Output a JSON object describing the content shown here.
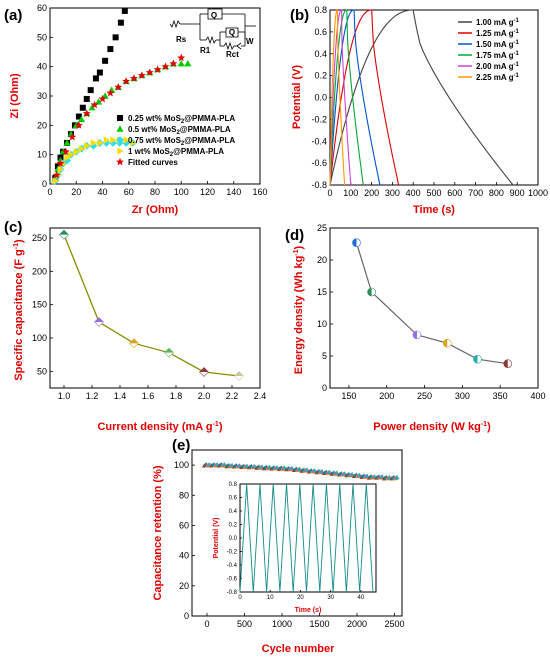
{
  "chart_data": [
    {
      "panel_label": "(a)",
      "type": "scatter",
      "xlabel": "Zr (Ohm)",
      "ylabel": "Zi (Ohm)",
      "xlim": [
        0,
        160
      ],
      "ylim": [
        0,
        60
      ],
      "xticks": [
        "0",
        "20",
        "40",
        "60",
        "80",
        "100",
        "120",
        "140",
        "160"
      ],
      "yticks": [
        "0",
        "10",
        "20",
        "30",
        "40",
        "50",
        "60"
      ],
      "circuit_labels": [
        "Q",
        "Q",
        "Rs",
        "R1",
        "Rct",
        "W"
      ],
      "series": [
        {
          "name": "0.25 wt% MoS2@PMMA-PLA",
          "color": "#000000",
          "marker": "square",
          "x": [
            4,
            6,
            8,
            10,
            13,
            16,
            19,
            22,
            25,
            28,
            31,
            35,
            38,
            42,
            46,
            50,
            54,
            57
          ],
          "y": [
            2,
            6,
            9,
            11,
            14,
            17,
            20,
            23,
            26,
            29,
            32,
            36,
            38,
            42,
            46,
            50,
            55,
            59
          ]
        },
        {
          "name": "0.5 wt% MoS2@PMMA-PLA",
          "color": "#00cc00",
          "marker": "triangle",
          "x": [
            4,
            6,
            8,
            10,
            13,
            16,
            20,
            24,
            28,
            32,
            37,
            42,
            47,
            52,
            58,
            64,
            70,
            76,
            82,
            88,
            94,
            100,
            105
          ],
          "y": [
            2,
            5,
            8,
            11,
            14,
            17,
            20,
            22,
            24,
            26,
            28,
            30,
            32,
            33,
            35,
            36,
            37,
            38,
            39,
            40,
            41,
            41,
            41
          ]
        },
        {
          "name": "0.75 wt% MoS2@PMMA-PLA",
          "color": "#33ddee",
          "marker": "diamond",
          "x": [
            4,
            6,
            8,
            10,
            13,
            16,
            20,
            24,
            28,
            33,
            38,
            43,
            48,
            53,
            58,
            63
          ],
          "y": [
            1,
            3,
            5,
            7,
            8,
            10,
            11,
            12,
            13,
            13,
            14,
            14,
            14,
            14,
            14,
            14
          ]
        },
        {
          "name": "1 wt% MoS2@PMMA-PLA",
          "color": "#ffdd00",
          "marker": "triangle-right",
          "x": [
            4,
            6,
            8,
            10,
            13,
            16,
            20,
            24,
            28,
            33,
            38,
            43,
            48,
            53,
            58,
            63
          ],
          "y": [
            1,
            3,
            5,
            7,
            9,
            10,
            11,
            12,
            13,
            14,
            14,
            15,
            15,
            15,
            15,
            14
          ]
        },
        {
          "name": "Fitted curves",
          "color": "#e00000",
          "marker": "star",
          "x": [
            5,
            8,
            12,
            17,
            22,
            28,
            34,
            40,
            46,
            52,
            58,
            64,
            70,
            76,
            82,
            88,
            94,
            100
          ],
          "y": [
            3,
            7,
            11,
            16,
            20,
            24,
            27,
            29,
            31,
            33,
            35,
            36,
            37,
            38,
            39,
            40,
            41,
            43
          ]
        }
      ]
    },
    {
      "panel_label": "(b)",
      "type": "line",
      "xlabel": "Time (s)",
      "ylabel": "Potential (V)",
      "xlim": [
        0,
        1000
      ],
      "ylim": [
        -0.8,
        0.8
      ],
      "xticks": [
        "0",
        "100",
        "200",
        "300",
        "400",
        "500",
        "600",
        "700",
        "800",
        "900",
        "1000"
      ],
      "yticks": [
        "0.8",
        "0.6",
        "0.4",
        "0.2",
        "0.0",
        "-0.2",
        "-0.4",
        "-0.6",
        "-0.8"
      ],
      "series": [
        {
          "name": "1.00 mA g-1",
          "label_main": "1.00 mA g",
          "label_sup": "-1",
          "color": "#444444",
          "charge_end": 400,
          "discharge_end": 880
        },
        {
          "name": "1.25 mA g-1",
          "label_main": "1.25 mA g",
          "label_sup": "-1",
          "color": "#e00000",
          "charge_end": 200,
          "discharge_end": 330
        },
        {
          "name": "1.50 mA g-1",
          "label_main": "1.50 mA g",
          "label_sup": "-1",
          "color": "#0055cc",
          "charge_end": 115,
          "discharge_end": 240
        },
        {
          "name": "1.75 mA g-1",
          "label_main": "1.75 mA g",
          "label_sup": "-1",
          "color": "#00aa33",
          "charge_end": 80,
          "discharge_end": 160
        },
        {
          "name": "2.00 mA g-1",
          "label_main": "2.00 mA g",
          "label_sup": "-1",
          "color": "#cc44cc",
          "charge_end": 55,
          "discharge_end": 100
        },
        {
          "name": "2.25 mA g-1",
          "label_main": "2.25 mA g",
          "label_sup": "-1",
          "color": "#ff9900",
          "charge_end": 35,
          "discharge_end": 70
        }
      ]
    },
    {
      "panel_label": "(c)",
      "type": "line",
      "xlabel": "Current density (mA g-1)",
      "xlabel_main": "Current density (mA g",
      "xlabel_sup": "-1",
      "xlabel_end": ")",
      "ylabel": "Specific capacitance (F g-1)",
      "ylabel_main": "Specific capacitance (F g",
      "ylabel_sup": "-1",
      "ylabel_end": ")",
      "xlim": [
        0.9,
        2.4
      ],
      "ylim": [
        25,
        265
      ],
      "xticks": [
        "1.0",
        "1.2",
        "1.4",
        "1.6",
        "1.8",
        "2.0",
        "2.2",
        "2.4"
      ],
      "yticks": [
        "50",
        "100",
        "150",
        "200",
        "250"
      ],
      "line_color": "#8b8b00",
      "x": [
        1.0,
        1.25,
        1.5,
        1.75,
        2.0,
        2.25
      ],
      "y": [
        255,
        124,
        92,
        78,
        49,
        43
      ],
      "marker_colors": [
        "#2e8b57",
        "#9370db",
        "#daa520",
        "#5fb65f",
        "#8b3a3a",
        "#c8c8a0"
      ]
    },
    {
      "panel_label": "(d)",
      "type": "line",
      "xlabel": "Power density (W kg-1)",
      "xlabel_main": "Power density (W kg",
      "xlabel_sup": "-1",
      "xlabel_end": ")",
      "ylabel": "Energy density (Wh kg-1)",
      "ylabel_main": "Energy density (Wh kg",
      "ylabel_sup": "-1",
      "ylabel_end": ")",
      "xlim": [
        125,
        400
      ],
      "ylim": [
        0,
        25
      ],
      "xticks": [
        "150",
        "200",
        "250",
        "300",
        "350",
        "400"
      ],
      "yticks": [
        "0",
        "5",
        "10",
        "15",
        "20",
        "25"
      ],
      "line_color": "#666666",
      "x": [
        160,
        180,
        240,
        280,
        320,
        360
      ],
      "y": [
        22.7,
        15.0,
        8.3,
        7.0,
        4.5,
        3.8
      ],
      "marker_colors": [
        "#1f6fd0",
        "#2e8b57",
        "#9370db",
        "#daa520",
        "#20b2aa",
        "#8b3a3a"
      ]
    },
    {
      "panel_label": "(e)",
      "type": "scatter",
      "xlabel": "Cycle number",
      "ylabel": "Capacitance retention (%)",
      "xlim": [
        -200,
        2600
      ],
      "ylim": [
        0,
        110
      ],
      "xticks": [
        "0",
        "500",
        "1000",
        "1500",
        "2000",
        "2500"
      ],
      "yticks": [
        "0",
        "20",
        "40",
        "60",
        "80",
        "100"
      ],
      "retention_x": [
        0,
        100,
        200,
        300,
        400,
        500,
        600,
        700,
        800,
        900,
        1000,
        1100,
        1200,
        1300,
        1400,
        1500,
        1600,
        1700,
        1800,
        1900,
        2000,
        2100,
        2200,
        2300,
        2400,
        2500
      ],
      "retention_y": [
        100,
        100,
        100,
        99.5,
        99.3,
        99,
        98.8,
        98.5,
        98.2,
        98,
        97.8,
        97.5,
        97,
        96.5,
        96,
        95.5,
        95,
        94.5,
        94,
        93.5,
        93,
        92.5,
        92,
        92,
        91.5,
        91.5
      ],
      "marker_colors": [
        "#e00000",
        "#00aa33",
        "#1f6fd0",
        "#daa520",
        "#cc44cc",
        "#20b2aa"
      ],
      "inset": {
        "type": "line",
        "xlabel": "Time (s)",
        "ylabel": "Potential (V)",
        "xlim": [
          0,
          45
        ],
        "ylim": [
          -0.8,
          0.8
        ],
        "xticks": [
          "0",
          "10",
          "20",
          "30",
          "40"
        ],
        "yticks": [
          "0.8",
          "0.6",
          "0.4",
          "0.2",
          "0.0",
          "-0.2",
          "-0.4",
          "-0.6",
          "-0.8"
        ],
        "color": "#138a8a",
        "period_s": 4.4,
        "cycles": 10
      }
    }
  ]
}
